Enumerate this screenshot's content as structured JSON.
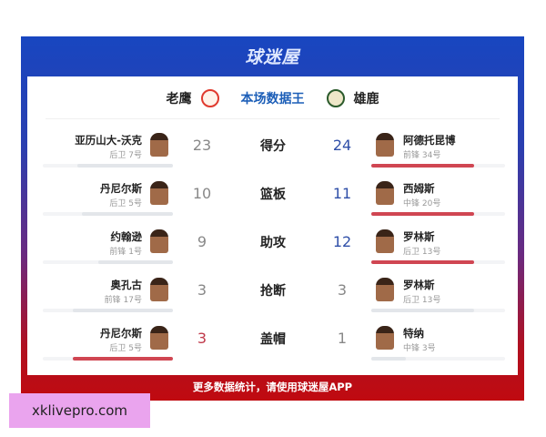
{
  "logo": "球迷屋",
  "header": {
    "home_team": "老鹰",
    "title": "本场数据王",
    "away_team": "雄鹿",
    "home_logo_icon": "hawks-logo-icon",
    "away_logo_icon": "bucks-logo-icon"
  },
  "rows": [
    {
      "stat": "得分",
      "left": {
        "name": "亚历山大-沃克",
        "pos": "后卫 7号",
        "value": 23
      },
      "right": {
        "name": "阿德托昆博",
        "pos": "前锋 34号",
        "value": 24
      }
    },
    {
      "stat": "篮板",
      "left": {
        "name": "丹尼尔斯",
        "pos": "后卫 5号",
        "value": 10
      },
      "right": {
        "name": "西姆斯",
        "pos": "中锋 20号",
        "value": 11
      }
    },
    {
      "stat": "助攻",
      "left": {
        "name": "约翰逊",
        "pos": "前锋 1号",
        "value": 9
      },
      "right": {
        "name": "罗林斯",
        "pos": "后卫 13号",
        "value": 12
      }
    },
    {
      "stat": "抢断",
      "left": {
        "name": "奥孔古",
        "pos": "前锋 17号",
        "value": 3
      },
      "right": {
        "name": "罗林斯",
        "pos": "后卫 13号",
        "value": 3
      }
    },
    {
      "stat": "盖帽",
      "left": {
        "name": "丹尼尔斯",
        "pos": "后卫 5号",
        "value": 3
      },
      "right": {
        "name": "特纳",
        "pos": "中锋 3号",
        "value": 1
      }
    }
  ],
  "footer": "更多数据统计，请使用球迷屋APP",
  "watermark": "xklivepro.com",
  "colors": {
    "winner_bar": "#d04652",
    "loser_bar": "#e3e6ea",
    "away_winner_number": "#2f4fa8",
    "home_winner_number": "#c0394a"
  }
}
